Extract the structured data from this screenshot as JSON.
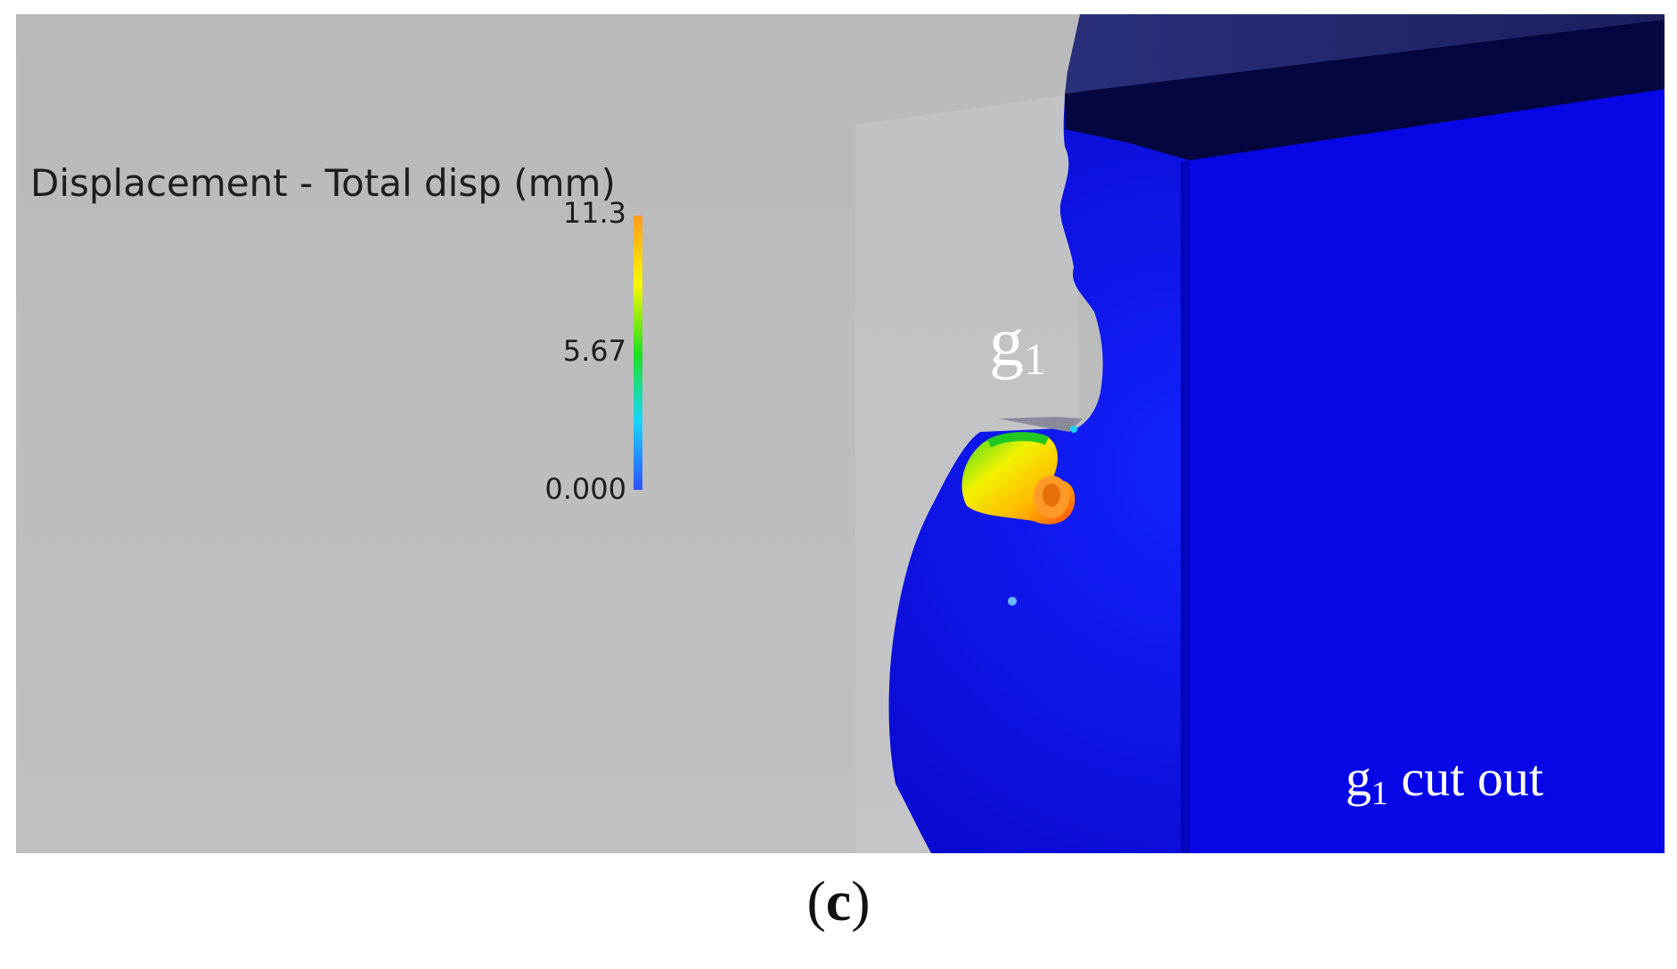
{
  "legend": {
    "title": "Displacement - Total disp (mm)",
    "max_label": "11.3",
    "mid_label": "5.67",
    "min_label": "0.000",
    "colormap": [
      "#3050ff",
      "#19d6ff",
      "#20e020",
      "#f7f700",
      "#ff9a1e"
    ]
  },
  "labels": {
    "g1_main": "g",
    "g1_sub": "1",
    "cut_main": "g",
    "cut_sub": "1",
    "cut_rest": " cut out"
  },
  "caption": {
    "open": "(",
    "letter": "c",
    "close": ")"
  },
  "colors": {
    "background_grey": "#bebebe",
    "mesh_blue": "#0a0ad8",
    "dark_navy": "#05063f",
    "highlight_orange": "#ff9a1e"
  }
}
